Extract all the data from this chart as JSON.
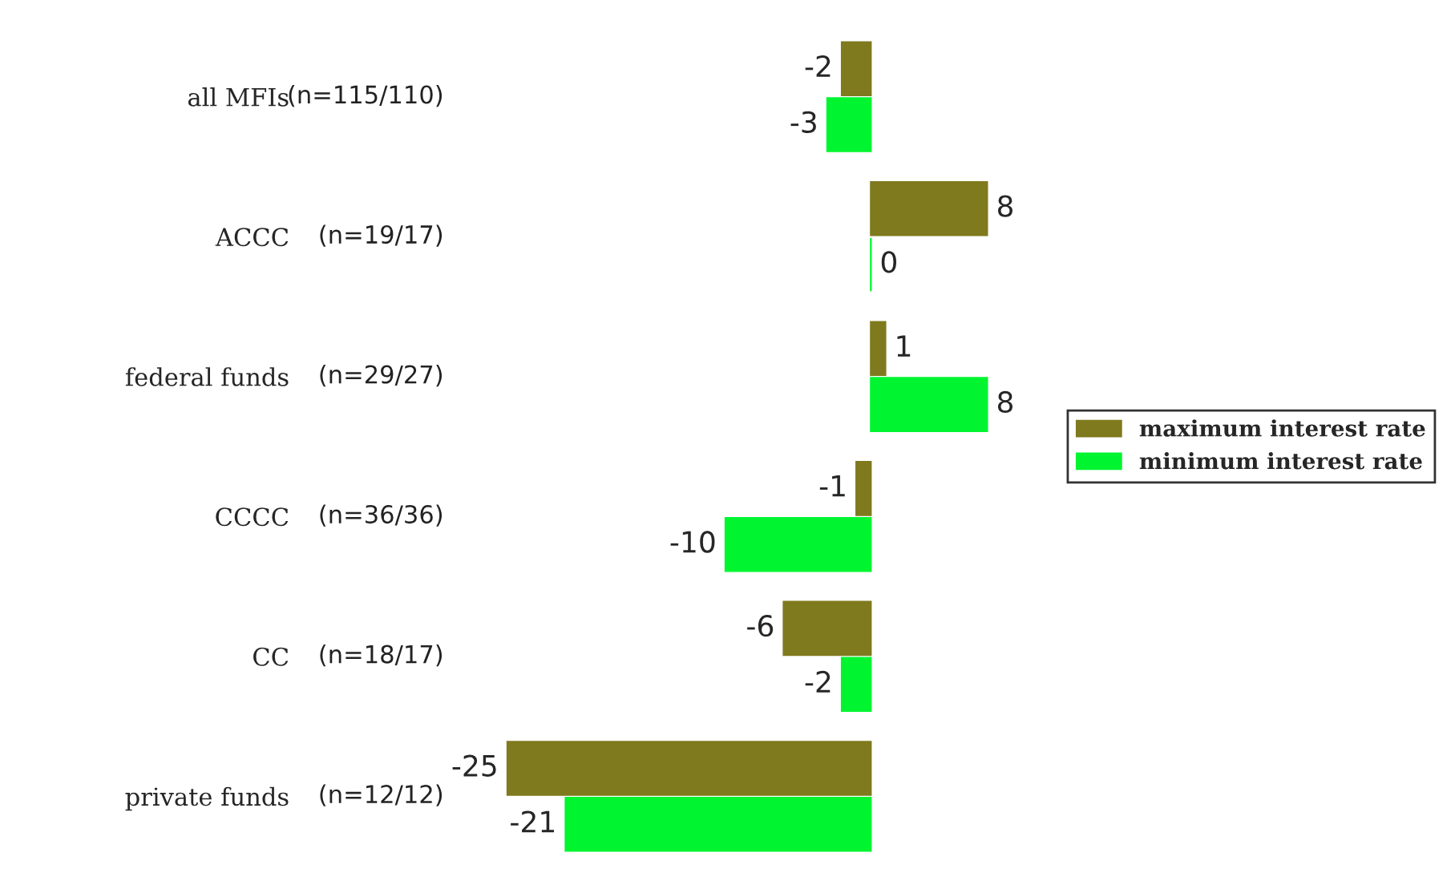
{
  "chart_data": {
    "type": "bar",
    "orientation": "horizontal",
    "categories": [
      "all MFIs",
      "ACCC",
      "federal funds",
      "CCCC",
      "CC",
      "private funds"
    ],
    "series": [
      {
        "name": "maximum interest rate",
        "color": "#7f7a1e",
        "values": [
          -2,
          8,
          1,
          -1,
          -6,
          -25
        ]
      },
      {
        "name": "minimum interest rate",
        "color": "#00f530",
        "values": [
          -3,
          0,
          8,
          -10,
          -2,
          -21
        ]
      }
    ],
    "annotations": [
      "(n=115/110)",
      "(n=19/17)",
      "(n=29/27)",
      "(n=36/36)",
      "(n=18/17)",
      "(n=12/12)"
    ],
    "data_labels": true,
    "legend": "right",
    "grid": false
  }
}
